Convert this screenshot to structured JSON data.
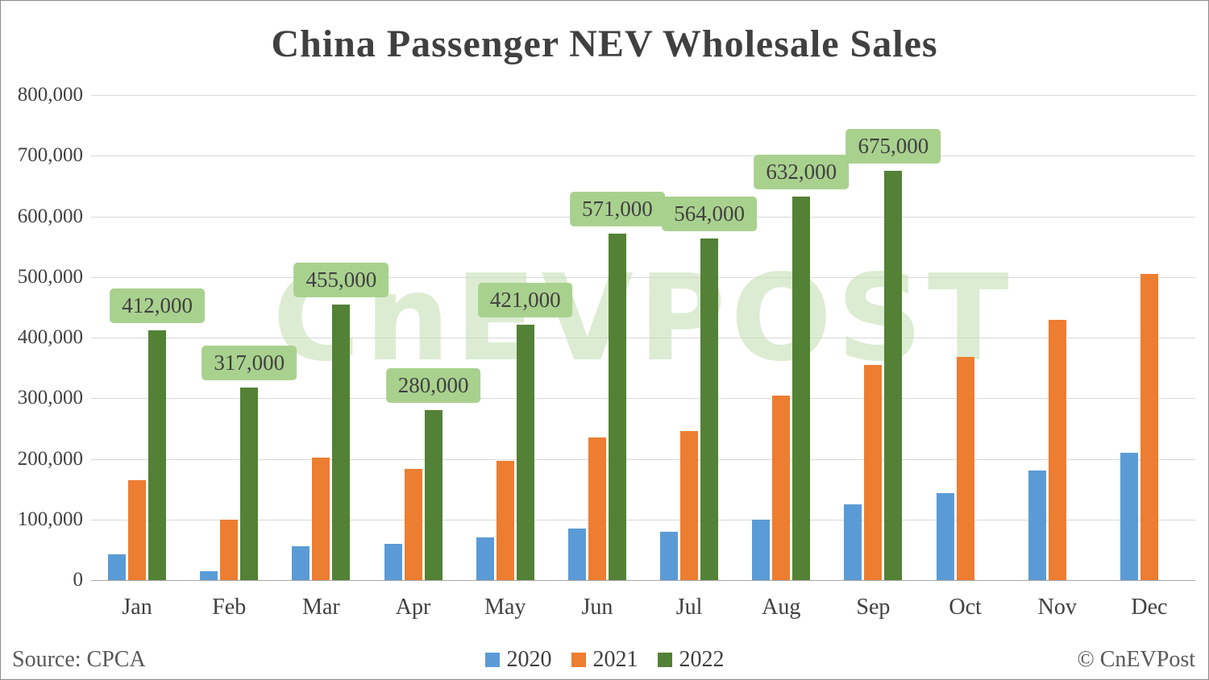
{
  "title": "China Passenger NEV Wholesale Sales",
  "source": "Source: CPCA",
  "copyright": "© CnEVPost",
  "watermark": "CnEVPOST",
  "colors": {
    "series_2020": "#5b9bd5",
    "series_2021": "#ed7d31",
    "series_2022": "#538135",
    "data_label_bg": "#a9d18e",
    "data_label_text": "#404040",
    "gridline": "#d9d9d9"
  },
  "chart_data": {
    "type": "bar",
    "title": "China Passenger NEV Wholesale Sales",
    "categories": [
      "Jan",
      "Feb",
      "Mar",
      "Apr",
      "May",
      "Jun",
      "Jul",
      "Aug",
      "Sep",
      "Oct",
      "Nov",
      "Dec"
    ],
    "series": [
      {
        "name": "2020",
        "color": "#5b9bd5",
        "values": [
          42000,
          14000,
          56000,
          60000,
          70000,
          85000,
          80000,
          100000,
          125000,
          144000,
          181000,
          210000
        ]
      },
      {
        "name": "2021",
        "color": "#ed7d31",
        "values": [
          165000,
          100000,
          202000,
          184000,
          197000,
          235000,
          246000,
          304000,
          355000,
          368000,
          429000,
          505000
        ]
      },
      {
        "name": "2022",
        "color": "#538135",
        "values": [
          412000,
          317000,
          455000,
          280000,
          421000,
          571000,
          564000,
          632000,
          675000,
          null,
          null,
          null
        ],
        "data_labels": [
          "412,000",
          "317,000",
          "455,000",
          "280,000",
          "421,000",
          "571,000",
          "564,000",
          "632,000",
          "675,000",
          null,
          null,
          null
        ]
      }
    ],
    "ylim": [
      0,
      800000
    ],
    "ytick_interval": 100000,
    "yticks": [
      "0",
      "100,000",
      "200,000",
      "300,000",
      "400,000",
      "500,000",
      "600,000",
      "700,000",
      "800,000"
    ],
    "grid": true,
    "legend_position": "bottom"
  }
}
